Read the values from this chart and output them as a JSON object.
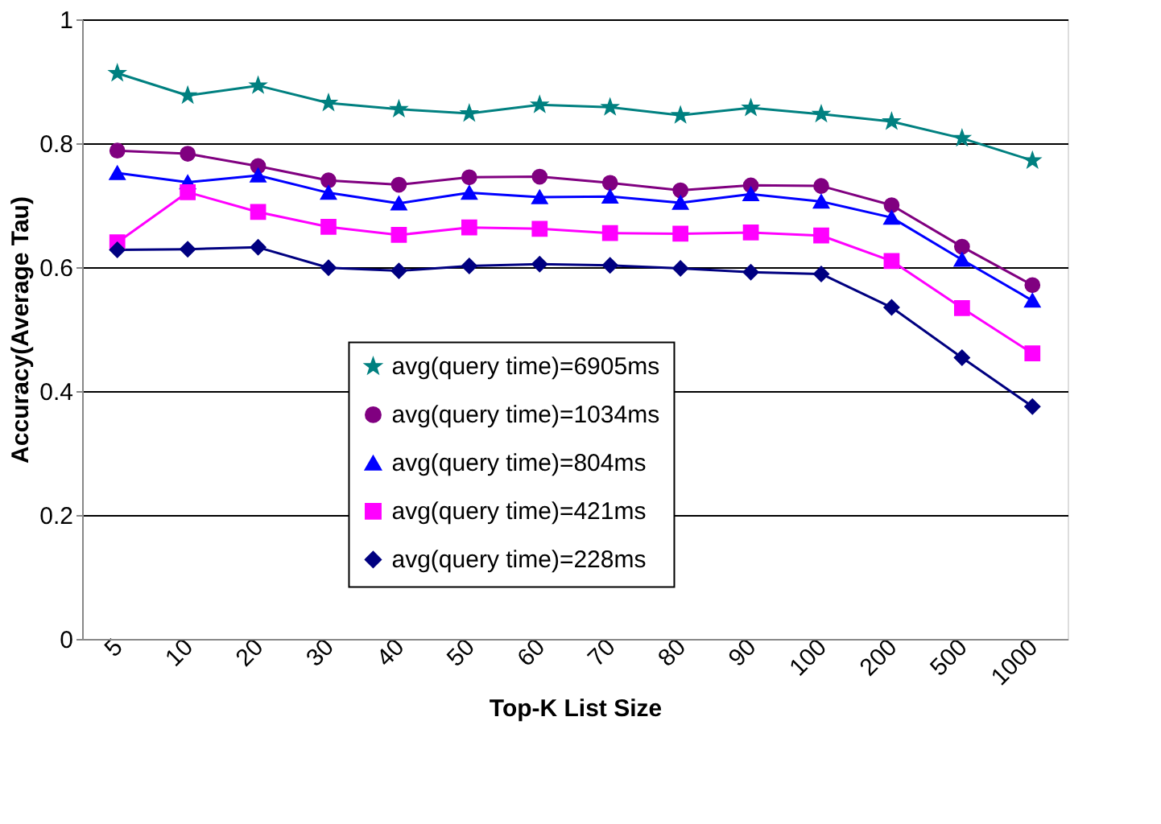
{
  "chart_data": {
    "type": "line",
    "xlabel": "Top-K List Size",
    "ylabel": "Accuracy(Average Tau)",
    "categories": [
      "5",
      "10",
      "20",
      "30",
      "40",
      "50",
      "60",
      "70",
      "80",
      "90",
      "100",
      "200",
      "500",
      "1000"
    ],
    "ylim": [
      0,
      1
    ],
    "yticks": [
      0,
      0.2,
      0.4,
      0.6,
      0.8,
      1
    ],
    "grid": "y",
    "legend": "bottom",
    "line_style": "solid",
    "series": [
      {
        "name": "avg(query time)=6905ms",
        "color": "#008080",
        "marker": "star",
        "values": [
          0.913,
          0.877,
          0.893,
          0.865,
          0.855,
          0.848,
          0.862,
          0.858,
          0.845,
          0.857,
          0.847,
          0.835,
          0.808,
          0.772
        ]
      },
      {
        "name": "avg(query time)=1034ms",
        "color": "#800080",
        "marker": "circle",
        "values": [
          0.788,
          0.783,
          0.763,
          0.74,
          0.733,
          0.745,
          0.746,
          0.736,
          0.724,
          0.732,
          0.731,
          0.7,
          0.633,
          0.571
        ]
      },
      {
        "name": "avg(query time)=804ms",
        "color": "#0000ff",
        "marker": "triangle",
        "values": [
          0.752,
          0.737,
          0.748,
          0.72,
          0.703,
          0.72,
          0.713,
          0.714,
          0.704,
          0.718,
          0.706,
          0.68,
          0.612,
          0.546
        ]
      },
      {
        "name": "avg(query time)=421ms",
        "color": "#ff00ff",
        "marker": "square",
        "values": [
          0.64,
          0.721,
          0.689,
          0.665,
          0.652,
          0.664,
          0.662,
          0.655,
          0.654,
          0.656,
          0.651,
          0.61,
          0.534,
          0.461
        ]
      },
      {
        "name": "avg(query time)=228ms",
        "color": "#000080",
        "marker": "diamond",
        "values": [
          0.628,
          0.629,
          0.632,
          0.599,
          0.594,
          0.602,
          0.605,
          0.603,
          0.598,
          0.592,
          0.589,
          0.535,
          0.454,
          0.375
        ]
      }
    ]
  }
}
